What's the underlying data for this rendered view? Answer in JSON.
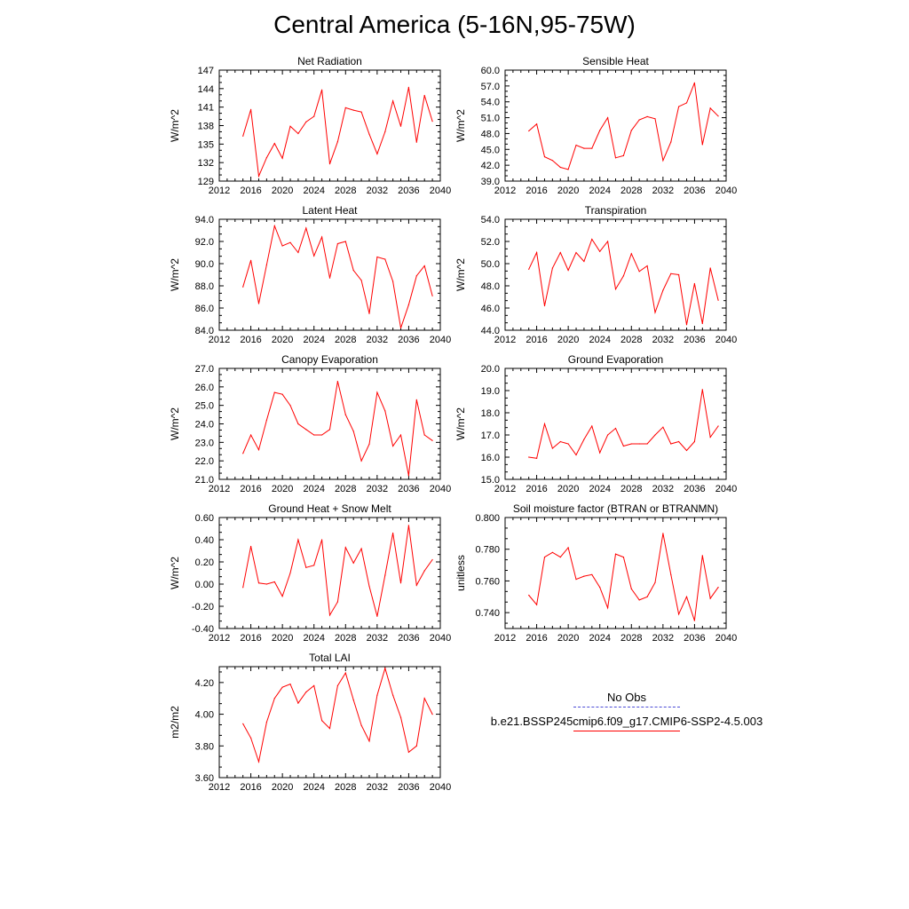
{
  "title": "Central America (5-16N,95-75W)",
  "legend": {
    "items": [
      {
        "label": "No Obs",
        "color": "#4b4bd6",
        "style": "dashed"
      },
      {
        "label": "b.e21.BSSP245cmip6.f09_g17.CMIP6-SSP2-4.5.003",
        "color": "#ff0000",
        "style": "solid"
      }
    ]
  },
  "chart_data": [
    {
      "type": "line",
      "title": "Net Radiation",
      "ylabel": "W/m^2",
      "xlim": [
        2012,
        2040
      ],
      "xticks": [
        2012,
        2016,
        2020,
        2024,
        2028,
        2032,
        2036,
        2040
      ],
      "ylim": [
        129,
        147
      ],
      "yticks": [
        "129",
        "132",
        "135",
        "138",
        "141",
        "144",
        "147"
      ],
      "series": [
        {
          "color": "#ff0000",
          "x": [
            2015,
            2016,
            2017,
            2018,
            2019,
            2020,
            2021,
            2022,
            2023,
            2024,
            2025,
            2026,
            2027,
            2028,
            2029,
            2030,
            2031,
            2032,
            2033,
            2034,
            2035,
            2036,
            2037,
            2038,
            2039
          ],
          "values": [
            136.3,
            140.6,
            129.8,
            132.8,
            135.1,
            132.7,
            137.9,
            136.7,
            138.6,
            139.5,
            143.8,
            131.8,
            135.4,
            140.9,
            140.5,
            140.2,
            136.6,
            133.4,
            137.0,
            142.0,
            137.9,
            144.2,
            135.3,
            142.9,
            138.7
          ]
        }
      ]
    },
    {
      "type": "line",
      "title": "Sensible Heat",
      "ylabel": "W/m^2",
      "xlim": [
        2012,
        2040
      ],
      "xticks": [
        2012,
        2016,
        2020,
        2024,
        2028,
        2032,
        2036,
        2040
      ],
      "ylim": [
        39,
        60
      ],
      "yticks": [
        "39.0",
        "42.0",
        "45.0",
        "48.0",
        "51.0",
        "54.0",
        "57.0",
        "60.0"
      ],
      "series": [
        {
          "color": "#ff0000",
          "x": [
            2015,
            2016,
            2017,
            2018,
            2019,
            2020,
            2021,
            2022,
            2023,
            2024,
            2025,
            2026,
            2027,
            2028,
            2029,
            2030,
            2031,
            2032,
            2033,
            2034,
            2035,
            2036,
            2037,
            2038,
            2039
          ],
          "values": [
            48.5,
            49.8,
            43.6,
            42.9,
            41.6,
            41.2,
            45.8,
            45.2,
            45.2,
            48.6,
            51.0,
            43.4,
            43.8,
            48.6,
            50.6,
            51.2,
            50.8,
            42.9,
            46.4,
            53.1,
            53.8,
            57.6,
            45.9,
            52.8,
            51.3
          ]
        }
      ]
    },
    {
      "type": "line",
      "title": "Latent Heat",
      "ylabel": "W/m^2",
      "xlim": [
        2012,
        2040
      ],
      "xticks": [
        2012,
        2016,
        2020,
        2024,
        2028,
        2032,
        2036,
        2040
      ],
      "ylim": [
        84,
        94
      ],
      "yticks": [
        "84.0",
        "86.0",
        "88.0",
        "90.0",
        "92.0",
        "94.0"
      ],
      "series": [
        {
          "color": "#ff0000",
          "x": [
            2015,
            2016,
            2017,
            2018,
            2019,
            2020,
            2021,
            2022,
            2023,
            2024,
            2025,
            2026,
            2027,
            2028,
            2029,
            2030,
            2031,
            2032,
            2033,
            2034,
            2035,
            2036,
            2037,
            2038,
            2039
          ],
          "values": [
            87.9,
            90.3,
            86.4,
            89.9,
            93.4,
            91.6,
            91.9,
            91.0,
            93.2,
            90.7,
            92.4,
            88.7,
            91.8,
            92.0,
            89.4,
            88.5,
            85.5,
            90.6,
            90.4,
            88.4,
            84.2,
            86.3,
            88.9,
            89.8,
            87.1
          ]
        }
      ]
    },
    {
      "type": "line",
      "title": "Transpiration",
      "ylabel": "W/m^2",
      "xlim": [
        2012,
        2040
      ],
      "xticks": [
        2012,
        2016,
        2020,
        2024,
        2028,
        2032,
        2036,
        2040
      ],
      "ylim": [
        44,
        54
      ],
      "yticks": [
        "44.0",
        "46.0",
        "48.0",
        "50.0",
        "52.0",
        "54.0"
      ],
      "series": [
        {
          "color": "#ff0000",
          "x": [
            2015,
            2016,
            2017,
            2018,
            2019,
            2020,
            2021,
            2022,
            2023,
            2024,
            2025,
            2026,
            2027,
            2028,
            2029,
            2030,
            2031,
            2032,
            2033,
            2034,
            2035,
            2036,
            2037,
            2038,
            2039
          ],
          "values": [
            49.5,
            51.0,
            46.2,
            49.6,
            51.0,
            49.4,
            51.0,
            50.2,
            52.2,
            51.1,
            52.0,
            47.7,
            48.9,
            50.9,
            49.3,
            49.8,
            45.6,
            47.6,
            49.1,
            49.0,
            44.5,
            48.2,
            44.6,
            49.6,
            46.7
          ]
        }
      ]
    },
    {
      "type": "line",
      "title": "Canopy Evaporation",
      "ylabel": "W/m^2",
      "xlim": [
        2012,
        2040
      ],
      "xticks": [
        2012,
        2016,
        2020,
        2024,
        2028,
        2032,
        2036,
        2040
      ],
      "ylim": [
        21,
        27
      ],
      "yticks": [
        "21.0",
        "22.0",
        "23.0",
        "24.0",
        "25.0",
        "26.0",
        "27.0"
      ],
      "series": [
        {
          "color": "#ff0000",
          "x": [
            2015,
            2016,
            2017,
            2018,
            2019,
            2020,
            2021,
            2022,
            2023,
            2024,
            2025,
            2026,
            2027,
            2028,
            2029,
            2030,
            2031,
            2032,
            2033,
            2034,
            2035,
            2036,
            2037,
            2038,
            2039
          ],
          "values": [
            22.4,
            23.4,
            22.6,
            24.2,
            25.7,
            25.6,
            25.0,
            24.0,
            23.7,
            23.4,
            23.4,
            23.7,
            26.3,
            24.5,
            23.6,
            22.0,
            22.9,
            25.7,
            24.7,
            22.8,
            23.4,
            21.2,
            25.3,
            23.4,
            23.1
          ]
        }
      ]
    },
    {
      "type": "line",
      "title": "Ground Evaporation",
      "ylabel": "W/m^2",
      "xlim": [
        2012,
        2040
      ],
      "xticks": [
        2012,
        2016,
        2020,
        2024,
        2028,
        2032,
        2036,
        2040
      ],
      "ylim": [
        15,
        20
      ],
      "yticks": [
        "15.0",
        "16.0",
        "17.0",
        "18.0",
        "19.0",
        "20.0"
      ],
      "series": [
        {
          "color": "#ff0000",
          "x": [
            2015,
            2016,
            2017,
            2018,
            2019,
            2020,
            2021,
            2022,
            2023,
            2024,
            2025,
            2026,
            2027,
            2028,
            2029,
            2030,
            2031,
            2032,
            2033,
            2034,
            2035,
            2036,
            2037,
            2038,
            2039
          ],
          "values": [
            16.0,
            15.95,
            17.5,
            16.4,
            16.7,
            16.6,
            16.1,
            16.8,
            17.4,
            16.2,
            17.0,
            17.3,
            16.5,
            16.6,
            16.6,
            16.6,
            17.0,
            17.35,
            16.6,
            16.7,
            16.3,
            16.7,
            19.05,
            16.9,
            17.4
          ]
        }
      ]
    },
    {
      "type": "line",
      "title": "Ground Heat + Snow Melt",
      "ylabel": "W/m^2",
      "xlim": [
        2012,
        2040
      ],
      "xticks": [
        2012,
        2016,
        2020,
        2024,
        2028,
        2032,
        2036,
        2040
      ],
      "ylim": [
        -0.4,
        0.6
      ],
      "yticks": [
        "-0.40",
        "-0.20",
        "0.00",
        "0.20",
        "0.40",
        "0.60"
      ],
      "series": [
        {
          "color": "#ff0000",
          "x": [
            2015,
            2016,
            2017,
            2018,
            2019,
            2020,
            2021,
            2022,
            2023,
            2024,
            2025,
            2026,
            2027,
            2028,
            2029,
            2030,
            2031,
            2032,
            2033,
            2034,
            2035,
            2036,
            2037,
            2038,
            2039
          ],
          "values": [
            -0.03,
            0.34,
            0.01,
            0.0,
            0.02,
            -0.11,
            0.1,
            0.4,
            0.15,
            0.17,
            0.4,
            -0.28,
            -0.16,
            0.33,
            0.19,
            0.32,
            -0.02,
            -0.29,
            0.08,
            0.46,
            0.01,
            0.53,
            -0.01,
            0.12,
            0.22
          ]
        }
      ]
    },
    {
      "type": "line",
      "title": "Soil moisture factor (BTRAN or BTRANMN)",
      "ylabel": "unitless",
      "xlim": [
        2012,
        2040
      ],
      "xticks": [
        2012,
        2016,
        2020,
        2024,
        2028,
        2032,
        2036,
        2040
      ],
      "ylim": [
        0.73,
        0.8
      ],
      "yticks": [
        "0.740",
        "0.760",
        "0.780",
        "0.800"
      ],
      "series": [
        {
          "color": "#ff0000",
          "x": [
            2015,
            2016,
            2017,
            2018,
            2019,
            2020,
            2021,
            2022,
            2023,
            2024,
            2025,
            2026,
            2027,
            2028,
            2029,
            2030,
            2031,
            2032,
            2033,
            2034,
            2035,
            2036,
            2037,
            2038,
            2039
          ],
          "values": [
            0.751,
            0.745,
            0.775,
            0.778,
            0.775,
            0.781,
            0.761,
            0.763,
            0.764,
            0.756,
            0.743,
            0.777,
            0.775,
            0.755,
            0.748,
            0.75,
            0.759,
            0.79,
            0.764,
            0.739,
            0.75,
            0.735,
            0.776,
            0.749,
            0.756
          ]
        }
      ]
    },
    {
      "type": "line",
      "title": "Total LAI",
      "ylabel": "m2/m2",
      "xlim": [
        2012,
        2040
      ],
      "xticks": [
        2012,
        2016,
        2020,
        2024,
        2028,
        2032,
        2036,
        2040
      ],
      "ylim": [
        3.6,
        4.3
      ],
      "yticks": [
        "3.60",
        "3.80",
        "4.00",
        "4.20"
      ],
      "series": [
        {
          "color": "#ff0000",
          "x": [
            2015,
            2016,
            2017,
            2018,
            2019,
            2020,
            2021,
            2022,
            2023,
            2024,
            2025,
            2026,
            2027,
            2028,
            2029,
            2030,
            2031,
            2032,
            2033,
            2034,
            2035,
            2036,
            2037,
            2038,
            2039
          ],
          "values": [
            3.94,
            3.85,
            3.7,
            3.95,
            4.1,
            4.17,
            4.19,
            4.07,
            4.14,
            4.18,
            3.96,
            3.91,
            4.18,
            4.26,
            4.09,
            3.93,
            3.83,
            4.12,
            4.29,
            4.12,
            3.98,
            3.76,
            3.8,
            4.1,
            4.0
          ]
        }
      ]
    }
  ]
}
